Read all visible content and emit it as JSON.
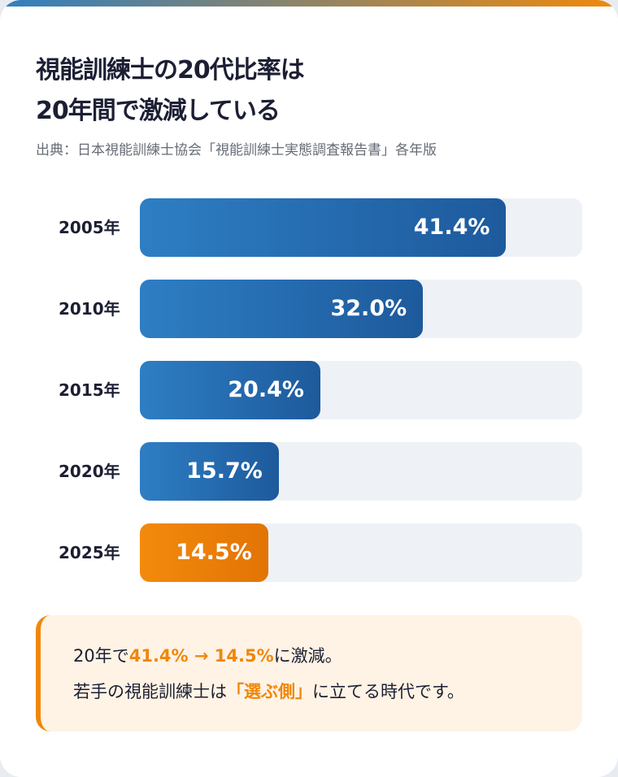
{
  "title_line1": "視能訓練士の20代比率は",
  "title_line2": "20年間で激減している",
  "source": "出典：日本視能訓練士協会「視能訓練士実態調査報告書」各年版",
  "colors": {
    "bar": "#2e7ec4",
    "highlight": "#f0870a",
    "track": "#eef2f7"
  },
  "chart_data": {
    "type": "bar",
    "orientation": "horizontal",
    "categories": [
      "2005年",
      "2010年",
      "2015年",
      "2020年",
      "2025年"
    ],
    "values": [
      41.4,
      32.0,
      20.4,
      15.7,
      14.5
    ],
    "value_labels": [
      "41.4%",
      "32.0%",
      "20.4%",
      "15.7%",
      "14.5%"
    ],
    "highlight_index": 4,
    "xlim": [
      0,
      50
    ],
    "grid": false
  },
  "callout": {
    "l1_a": "20年で",
    "l1_b": "41.4% → 14.5%",
    "l1_c": "に激減。",
    "l2_a": "若手の視能訓練士は",
    "l2_b": "「選ぶ側」",
    "l2_c": "に立てる時代です。"
  }
}
